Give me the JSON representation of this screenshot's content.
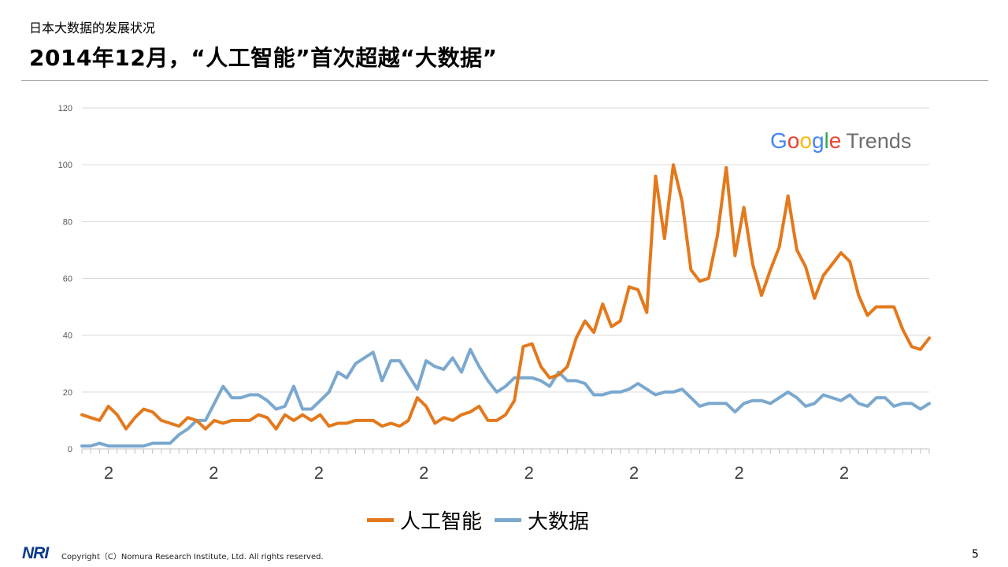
{
  "header": {
    "subtitle": "日本大数据的发展状况",
    "title": "2014年12月，“人工智能”首次超越“大数据”"
  },
  "brand": {
    "google_letters": [
      "G",
      "o",
      "o",
      "g",
      "l",
      "e"
    ],
    "trends_label": "Trends"
  },
  "footer": {
    "logo": "NRI",
    "copyright": "Copyright（C）Nomura Research Institute, Ltd. All rights reserved.",
    "page_number": "5"
  },
  "colors": {
    "ai": "#E3791C",
    "bigdata": "#7AA8CF",
    "grid": "#d9d9d9"
  },
  "chart_data": {
    "type": "line",
    "title": "",
    "ylim": [
      0,
      120
    ],
    "yticks": [
      0,
      20,
      40,
      60,
      80,
      100,
      120
    ],
    "x_tick_labels": [
      "2",
      "2",
      "2",
      "2",
      "2",
      "2",
      "2",
      "2"
    ],
    "series": [
      {
        "name": "人工智能",
        "color": "#E3791C",
        "values": [
          12,
          11,
          10,
          15,
          12,
          7,
          11,
          14,
          13,
          10,
          9,
          8,
          11,
          10,
          7,
          10,
          9,
          10,
          10,
          10,
          12,
          11,
          7,
          12,
          10,
          12,
          10,
          12,
          8,
          9,
          9,
          10,
          10,
          10,
          8,
          9,
          8,
          10,
          18,
          15,
          9,
          11,
          10,
          12,
          13,
          15,
          10,
          10,
          12,
          17,
          36,
          37,
          29,
          25,
          26,
          29,
          39,
          45,
          41,
          51,
          43,
          45,
          57,
          56,
          48,
          96,
          74,
          100,
          87,
          63,
          59,
          60,
          75,
          99,
          68,
          85,
          65,
          54,
          63,
          71,
          89,
          70,
          64,
          53,
          61,
          65,
          69,
          66,
          54,
          47,
          50,
          50,
          50,
          42,
          36,
          35,
          39
        ]
      },
      {
        "name": "大数据",
        "color": "#7AA8CF",
        "values": [
          1,
          1,
          2,
          1,
          1,
          1,
          1,
          1,
          2,
          2,
          2,
          5,
          7,
          10,
          10,
          16,
          22,
          18,
          18,
          19,
          19,
          17,
          14,
          15,
          22,
          14,
          14,
          17,
          20,
          27,
          25,
          30,
          32,
          34,
          24,
          31,
          31,
          26,
          21,
          31,
          29,
          28,
          32,
          27,
          35,
          29,
          24,
          20,
          22,
          25,
          25,
          25,
          24,
          22,
          27,
          24,
          24,
          23,
          19,
          19,
          20,
          20,
          21,
          23,
          21,
          19,
          20,
          20,
          21,
          18,
          15,
          16,
          16,
          16,
          13,
          16,
          17,
          17,
          16,
          18,
          20,
          18,
          15,
          16,
          19,
          18,
          17,
          19,
          16,
          15,
          18,
          18,
          15,
          16,
          16,
          14,
          16
        ]
      }
    ]
  }
}
